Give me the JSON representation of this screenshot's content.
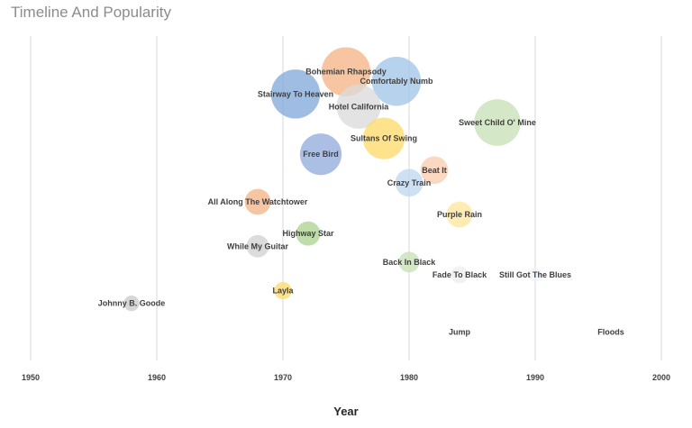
{
  "chart_data": {
    "type": "scatter",
    "title": "Timeline And Popularity",
    "xlabel": "Year",
    "ylabel": "",
    "xlim": [
      1950,
      2000
    ],
    "ylim": [
      0,
      100
    ],
    "xticks": [
      1950,
      1960,
      1970,
      1980,
      1990,
      2000
    ],
    "grid": "vertical",
    "legend": "none",
    "points": [
      {
        "label": "Bohemian Rhapsody",
        "year": 1975,
        "y": 91,
        "size": 1.0,
        "color": "#f4b183"
      },
      {
        "label": "Comfortably Numb",
        "year": 1979,
        "y": 88,
        "size": 1.0,
        "color": "#9dc3e6"
      },
      {
        "label": "Stairway To Heaven",
        "year": 1971,
        "y": 84,
        "size": 1.0,
        "color": "#7fa6d8"
      },
      {
        "label": "Hotel California",
        "year": 1976,
        "y": 80,
        "size": 0.9,
        "color": "#d9d9d9"
      },
      {
        "label": "Sweet Child O' Mine",
        "year": 1987,
        "y": 75,
        "size": 0.95,
        "color": "#c5e0b4"
      },
      {
        "label": "Sultans Of Swing",
        "year": 1978,
        "y": 70,
        "size": 0.85,
        "color": "#ffd966"
      },
      {
        "label": "Free Bird",
        "year": 1973,
        "y": 65,
        "size": 0.85,
        "color": "#8faadc"
      },
      {
        "label": "Beat It",
        "year": 1982,
        "y": 60,
        "size": 0.8,
        "color": "#f8cbad"
      },
      {
        "label": "Crazy Train",
        "year": 1980,
        "y": 56,
        "size": 0.8,
        "color": "#bdd7ee"
      },
      {
        "label": "All Along The Watchtower",
        "year": 1968,
        "y": 50,
        "size": 0.75,
        "color": "#f4b183"
      },
      {
        "label": "Purple Rain",
        "year": 1984,
        "y": 46,
        "size": 0.75,
        "color": "#ffe699"
      },
      {
        "label": "Highway Star",
        "year": 1972,
        "y": 40,
        "size": 0.7,
        "color": "#a9d18e"
      },
      {
        "label": "While My Guitar",
        "year": 1968,
        "y": 36,
        "size": 0.65,
        "color": "#d0d0d0"
      },
      {
        "label": "Back In Black",
        "year": 1980,
        "y": 31,
        "size": 0.6,
        "color": "#c5e0b4"
      },
      {
        "label": "Fade To Black",
        "year": 1984,
        "y": 27,
        "size": 0.5,
        "color": "#ededed"
      },
      {
        "label": "Still Got The Blues",
        "year": 1990,
        "y": 27,
        "size": 0.4,
        "color": "#eef3fa"
      },
      {
        "label": "Layla",
        "year": 1970,
        "y": 22,
        "size": 0.5,
        "color": "#ffd966"
      },
      {
        "label": "Johnny B. Goode",
        "year": 1958,
        "y": 18,
        "size": 0.45,
        "color": "#c9c9c9"
      },
      {
        "label": "Jump",
        "year": 1984,
        "y": 9,
        "size": 0.0,
        "color": "#ffffff"
      },
      {
        "label": "Floods",
        "year": 1996,
        "y": 9,
        "size": 0.0,
        "color": "#ffffff"
      }
    ]
  }
}
